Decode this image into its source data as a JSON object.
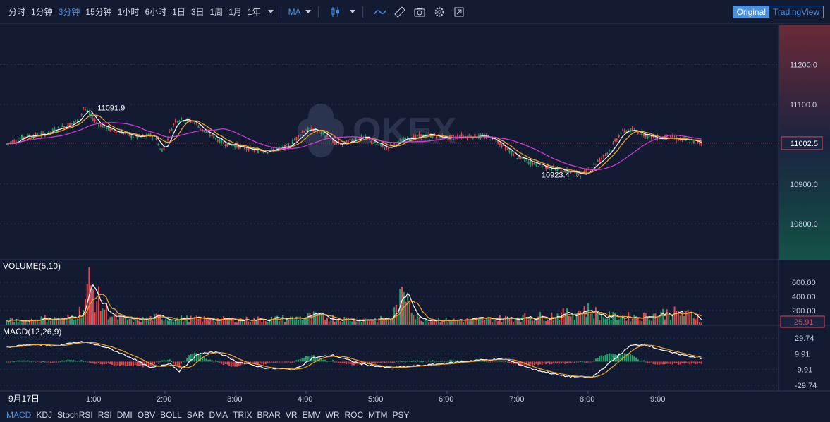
{
  "toolbar": {
    "timeframes": [
      "分时",
      "1分钟",
      "3分钟",
      "15分钟",
      "1小时",
      "6小时",
      "1日",
      "3日",
      "1周",
      "1月",
      "1年"
    ],
    "active_timeframe": 2,
    "indicator_select": "MA",
    "view_original": "Original",
    "view_tradingview": "TradingView"
  },
  "watermark": "OKEX",
  "colors": {
    "background": "#131b33",
    "up": "#26a269",
    "down": "#e8474c",
    "ma_white": "#ffffff",
    "ma_orange": "#f5a623",
    "ma_magenta": "#d63ed8",
    "accent": "#4a90e2"
  },
  "chart_data": {
    "type": "candlestick",
    "price_axis": {
      "ticks": [
        "11200.0",
        "11100.0",
        "10900.0",
        "10800.0"
      ],
      "ylim": [
        10710,
        11300
      ]
    },
    "last_price_label": "11002.5",
    "last_price": 11002.5,
    "high_marker": {
      "label": "11091.9",
      "value": 11091.9
    },
    "low_marker": {
      "label": "10923.4",
      "value": 10923.4
    },
    "time_axis": {
      "date_label": "9月17日",
      "ticks": [
        "1:00",
        "2:00",
        "3:00",
        "4:00",
        "5:00",
        "6:00",
        "7:00",
        "8:00",
        "9:00"
      ]
    },
    "price_path": [
      [
        0,
        11000
      ],
      [
        10,
        11020
      ],
      [
        20,
        11025
      ],
      [
        30,
        11045
      ],
      [
        38,
        11060
      ],
      [
        40,
        11091.9
      ],
      [
        43,
        11075
      ],
      [
        48,
        11050
      ],
      [
        55,
        11035
      ],
      [
        60,
        11030
      ],
      [
        65,
        11020
      ],
      [
        70,
        11018
      ],
      [
        75,
        11022
      ],
      [
        78,
        11015
      ],
      [
        80,
        10985
      ],
      [
        82,
        10990
      ],
      [
        85,
        11030
      ],
      [
        88,
        11060
      ],
      [
        92,
        11062
      ],
      [
        98,
        11055
      ],
      [
        102,
        11035
      ],
      [
        108,
        11018
      ],
      [
        113,
        11002
      ],
      [
        118,
        10998
      ],
      [
        125,
        10990
      ],
      [
        132,
        10982
      ],
      [
        137,
        10985
      ],
      [
        142,
        10988
      ],
      [
        147,
        10995
      ],
      [
        150,
        11010
      ],
      [
        155,
        11035
      ],
      [
        160,
        11038
      ],
      [
        165,
        11025
      ],
      [
        170,
        11005
      ],
      [
        175,
        11000
      ],
      [
        180,
        11010
      ],
      [
        185,
        11018
      ],
      [
        190,
        11008
      ],
      [
        195,
        10995
      ],
      [
        198,
        10990
      ],
      [
        202,
        11000
      ],
      [
        208,
        11012
      ],
      [
        215,
        11020
      ],
      [
        220,
        11022
      ],
      [
        225,
        11020
      ],
      [
        230,
        11015
      ],
      [
        236,
        11020
      ],
      [
        243,
        11020
      ],
      [
        250,
        11018
      ],
      [
        255,
        11012
      ],
      [
        260,
        10990
      ],
      [
        265,
        10970
      ],
      [
        272,
        10955
      ],
      [
        280,
        10945
      ],
      [
        285,
        10940
      ],
      [
        290,
        10935
      ],
      [
        295,
        10930
      ],
      [
        300,
        10923.4
      ],
      [
        305,
        10945
      ],
      [
        310,
        10965
      ],
      [
        315,
        10990
      ],
      [
        320,
        11030
      ],
      [
        325,
        11035
      ],
      [
        330,
        11030
      ],
      [
        335,
        11020
      ],
      [
        340,
        11015
      ],
      [
        345,
        11020
      ],
      [
        350,
        11012
      ],
      [
        355,
        11010
      ],
      [
        360,
        11005
      ],
      [
        362,
        11002.5
      ]
    ],
    "volume_panel": {
      "title": "VOLUME(5,10)",
      "ticks": [
        "600.00",
        "400.00",
        "200.00"
      ],
      "last_label": "25.91",
      "ylim": [
        0,
        800
      ]
    },
    "volume_profile": [
      [
        0,
        60
      ],
      [
        10,
        60
      ],
      [
        20,
        90
      ],
      [
        30,
        70
      ],
      [
        38,
        180
      ],
      [
        40,
        250
      ],
      [
        43,
        560
      ],
      [
        46,
        420
      ],
      [
        50,
        260
      ],
      [
        55,
        120
      ],
      [
        60,
        80
      ],
      [
        70,
        70
      ],
      [
        80,
        110
      ],
      [
        85,
        90
      ],
      [
        100,
        80
      ],
      [
        120,
        70
      ],
      [
        150,
        90
      ],
      [
        160,
        120
      ],
      [
        180,
        70
      ],
      [
        200,
        80
      ],
      [
        210,
        570
      ],
      [
        212,
        140
      ],
      [
        215,
        90
      ],
      [
        230,
        60
      ],
      [
        260,
        90
      ],
      [
        280,
        120
      ],
      [
        295,
        160
      ],
      [
        300,
        210
      ],
      [
        305,
        200
      ],
      [
        310,
        120
      ],
      [
        330,
        110
      ],
      [
        345,
        170
      ],
      [
        355,
        140
      ],
      [
        360,
        120
      ],
      [
        362,
        40
      ]
    ],
    "macd_panel": {
      "title": "MACD(12,26,9)",
      "ticks": [
        "29.74",
        "9.91",
        "-9.91",
        "-29.74"
      ],
      "ylim": [
        -36,
        36
      ]
    },
    "macd_path": [
      [
        0,
        18
      ],
      [
        12,
        22
      ],
      [
        25,
        20
      ],
      [
        40,
        25
      ],
      [
        52,
        18
      ],
      [
        65,
        5
      ],
      [
        75,
        -8
      ],
      [
        85,
        -2
      ],
      [
        90,
        -12
      ],
      [
        100,
        10
      ],
      [
        110,
        12
      ],
      [
        120,
        0
      ],
      [
        135,
        -8
      ],
      [
        150,
        -10
      ],
      [
        160,
        5
      ],
      [
        170,
        8
      ],
      [
        185,
        -3
      ],
      [
        200,
        -8
      ],
      [
        215,
        -5
      ],
      [
        230,
        -2
      ],
      [
        245,
        2
      ],
      [
        260,
        3
      ],
      [
        275,
        -10
      ],
      [
        290,
        -18
      ],
      [
        305,
        -20
      ],
      [
        315,
        0
      ],
      [
        325,
        20
      ],
      [
        332,
        22
      ],
      [
        345,
        12
      ],
      [
        362,
        4
      ]
    ]
  },
  "bottom_indicators": [
    "MACD",
    "KDJ",
    "StochRSI",
    "RSI",
    "DMI",
    "OBV",
    "BOLL",
    "SAR",
    "DMA",
    "TRIX",
    "BRAR",
    "VR",
    "EMV",
    "WR",
    "ROC",
    "MTM",
    "PSY"
  ],
  "active_indicator": 0
}
